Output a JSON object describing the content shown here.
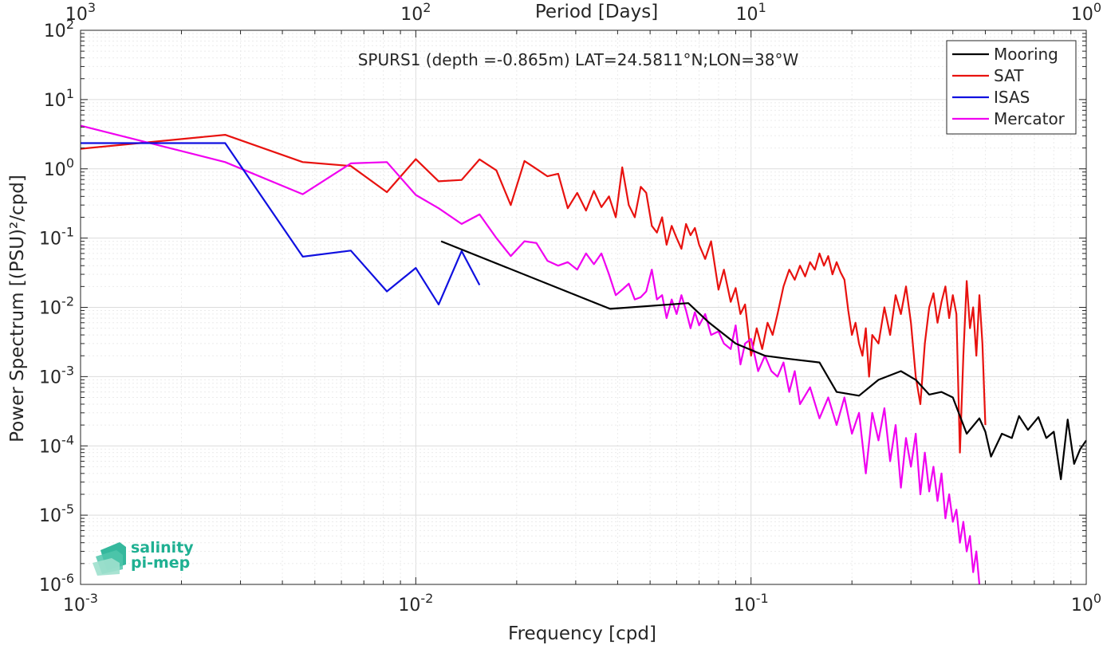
{
  "chart_data": {
    "type": "line",
    "title": "SPURS1 (depth =-0.865m) LAT=24.5811°N;LON=38°W",
    "xlabel": "Frequency [cpd]",
    "ylabel": "Power Spectrum [(PSU)²/cpd]",
    "x2label": "Period [Days]",
    "x_scale": "log",
    "y_scale": "log",
    "xlim": [
      0.001,
      1
    ],
    "ylim": [
      1e-06,
      100
    ],
    "grid": true,
    "legend_position": "top-right",
    "x_ticks": [
      {
        "value": 0.001,
        "base": "10",
        "exp": "-3"
      },
      {
        "value": 0.01,
        "base": "10",
        "exp": "-2"
      },
      {
        "value": 0.1,
        "base": "10",
        "exp": "-1"
      },
      {
        "value": 1,
        "base": "10",
        "exp": "0"
      }
    ],
    "x2_ticks": [
      {
        "value": 1000,
        "base": "10",
        "exp": "3"
      },
      {
        "value": 100,
        "base": "10",
        "exp": "2"
      },
      {
        "value": 10,
        "base": "10",
        "exp": "1"
      },
      {
        "value": 1,
        "base": "10",
        "exp": "0"
      }
    ],
    "y_ticks": [
      {
        "value": 1e-06,
        "base": "10",
        "exp": "-6"
      },
      {
        "value": 1e-05,
        "base": "10",
        "exp": "-5"
      },
      {
        "value": 0.0001,
        "base": "10",
        "exp": "-4"
      },
      {
        "value": 0.001,
        "base": "10",
        "exp": "-3"
      },
      {
        "value": 0.01,
        "base": "10",
        "exp": "-2"
      },
      {
        "value": 0.1,
        "base": "10",
        "exp": "-1"
      },
      {
        "value": 1,
        "base": "10",
        "exp": "0"
      },
      {
        "value": 10,
        "base": "10",
        "exp": "1"
      },
      {
        "value": 100,
        "base": "10",
        "exp": "2"
      }
    ],
    "series": [
      {
        "name": "Mooring",
        "color": "#000000",
        "x": [
          0.0119,
          0.038,
          0.065,
          0.075,
          0.09,
          0.11,
          0.13,
          0.16,
          0.18,
          0.21,
          0.24,
          0.28,
          0.31,
          0.34,
          0.37,
          0.4,
          0.44,
          0.48,
          0.5,
          0.52,
          0.56,
          0.6,
          0.63,
          0.67,
          0.72,
          0.76,
          0.8,
          0.84,
          0.88,
          0.92,
          0.96,
          1.0
        ],
        "y": [
          0.09,
          0.0095,
          0.0115,
          0.006,
          0.003,
          0.002,
          0.0018,
          0.0016,
          0.0006,
          0.00053,
          0.0009,
          0.0012,
          0.0009,
          0.00055,
          0.0006,
          0.0005,
          0.00015,
          0.00025,
          0.00016,
          7e-05,
          0.00015,
          0.00013,
          0.00027,
          0.00017,
          0.00026,
          0.00013,
          0.00016,
          3.3e-05,
          0.00024,
          5.5e-05,
          9e-05,
          0.00012
        ]
      },
      {
        "name": "SAT",
        "color": "#e8120f",
        "x": [
          0.001,
          0.0027,
          0.0046,
          0.0064,
          0.0082,
          0.01,
          0.0117,
          0.0137,
          0.0155,
          0.0174,
          0.0192,
          0.0211,
          0.0229,
          0.0247,
          0.0266,
          0.0284,
          0.0303,
          0.0322,
          0.034,
          0.0358,
          0.0377,
          0.0395,
          0.0413,
          0.0432,
          0.045,
          0.0469,
          0.0487,
          0.0506,
          0.0524,
          0.0543,
          0.056,
          0.058,
          0.06,
          0.062,
          0.064,
          0.066,
          0.068,
          0.07,
          0.073,
          0.076,
          0.08,
          0.083,
          0.087,
          0.09,
          0.093,
          0.096,
          0.1,
          0.104,
          0.108,
          0.112,
          0.116,
          0.12,
          0.125,
          0.13,
          0.135,
          0.14,
          0.145,
          0.15,
          0.155,
          0.16,
          0.165,
          0.17,
          0.175,
          0.18,
          0.185,
          0.19,
          0.195,
          0.2,
          0.205,
          0.21,
          0.215,
          0.22,
          0.225,
          0.23,
          0.24,
          0.25,
          0.26,
          0.27,
          0.28,
          0.29,
          0.3,
          0.31,
          0.32,
          0.33,
          0.34,
          0.35,
          0.36,
          0.37,
          0.38,
          0.39,
          0.4,
          0.41,
          0.42,
          0.43,
          0.44,
          0.45,
          0.46,
          0.47,
          0.48,
          0.49,
          0.5
        ],
        "y": [
          1.95,
          3.1,
          1.25,
          1.1,
          0.46,
          1.38,
          0.66,
          0.69,
          1.37,
          0.95,
          0.3,
          1.3,
          1.0,
          0.78,
          0.85,
          0.27,
          0.45,
          0.25,
          0.48,
          0.28,
          0.4,
          0.2,
          1.05,
          0.3,
          0.2,
          0.55,
          0.45,
          0.15,
          0.12,
          0.2,
          0.08,
          0.15,
          0.1,
          0.07,
          0.16,
          0.11,
          0.14,
          0.08,
          0.05,
          0.09,
          0.018,
          0.035,
          0.012,
          0.019,
          0.008,
          0.011,
          0.002,
          0.005,
          0.0025,
          0.006,
          0.004,
          0.008,
          0.02,
          0.035,
          0.025,
          0.04,
          0.028,
          0.045,
          0.035,
          0.06,
          0.04,
          0.055,
          0.03,
          0.045,
          0.032,
          0.025,
          0.009,
          0.004,
          0.006,
          0.003,
          0.002,
          0.005,
          0.001,
          0.004,
          0.003,
          0.01,
          0.004,
          0.015,
          0.008,
          0.02,
          0.006,
          0.001,
          0.0004,
          0.003,
          0.01,
          0.016,
          0.006,
          0.012,
          0.02,
          0.007,
          0.015,
          0.008,
          8e-05,
          0.002,
          0.024,
          0.005,
          0.01,
          0.002,
          0.015,
          0.003,
          0.0002
        ]
      },
      {
        "name": "ISAS",
        "color": "#1010e0",
        "x": [
          0.001,
          0.0027,
          0.0046,
          0.0064,
          0.0082,
          0.01,
          0.0117,
          0.0137,
          0.0155
        ],
        "y": [
          2.35,
          2.35,
          0.054,
          0.066,
          0.017,
          0.037,
          0.011,
          0.065,
          0.021
        ]
      },
      {
        "name": "Mercator",
        "color": "#f000f0",
        "x": [
          0.001,
          0.0027,
          0.0046,
          0.0064,
          0.0082,
          0.01,
          0.0117,
          0.0137,
          0.0155,
          0.0174,
          0.0192,
          0.0211,
          0.0229,
          0.0247,
          0.0266,
          0.0284,
          0.0303,
          0.0322,
          0.034,
          0.0358,
          0.0377,
          0.0395,
          0.0413,
          0.0432,
          0.045,
          0.0469,
          0.0487,
          0.0506,
          0.0524,
          0.0543,
          0.056,
          0.058,
          0.06,
          0.062,
          0.064,
          0.066,
          0.068,
          0.07,
          0.073,
          0.076,
          0.08,
          0.083,
          0.087,
          0.09,
          0.093,
          0.096,
          0.1,
          0.105,
          0.11,
          0.115,
          0.12,
          0.125,
          0.13,
          0.135,
          0.14,
          0.15,
          0.16,
          0.17,
          0.18,
          0.19,
          0.2,
          0.21,
          0.22,
          0.23,
          0.24,
          0.25,
          0.26,
          0.27,
          0.28,
          0.29,
          0.3,
          0.31,
          0.32,
          0.33,
          0.34,
          0.35,
          0.36,
          0.37,
          0.38,
          0.39,
          0.4,
          0.41,
          0.42,
          0.43,
          0.44,
          0.45,
          0.46,
          0.47,
          0.48
        ],
        "y": [
          4.2,
          1.25,
          0.43,
          1.2,
          1.25,
          0.42,
          0.27,
          0.16,
          0.22,
          0.1,
          0.055,
          0.09,
          0.085,
          0.047,
          0.04,
          0.045,
          0.035,
          0.06,
          0.042,
          0.06,
          0.03,
          0.015,
          0.018,
          0.022,
          0.013,
          0.014,
          0.017,
          0.035,
          0.013,
          0.015,
          0.007,
          0.013,
          0.008,
          0.015,
          0.009,
          0.005,
          0.0085,
          0.0055,
          0.008,
          0.004,
          0.0045,
          0.003,
          0.0025,
          0.0055,
          0.0015,
          0.003,
          0.0035,
          0.0012,
          0.002,
          0.0012,
          0.001,
          0.0016,
          0.0006,
          0.0012,
          0.0004,
          0.0007,
          0.00025,
          0.0005,
          0.0002,
          0.0005,
          0.00015,
          0.0003,
          4e-05,
          0.0003,
          0.00012,
          0.00035,
          6e-05,
          0.0002,
          2.5e-05,
          0.00013,
          5e-05,
          0.00015,
          2e-05,
          8e-05,
          2.2e-05,
          5e-05,
          1.6e-05,
          4e-05,
          9e-06,
          2e-05,
          8e-06,
          1.2e-05,
          4e-06,
          8e-06,
          3e-06,
          5e-06,
          1.5e-06,
          3e-06,
          1e-06
        ]
      }
    ]
  },
  "logo": {
    "line1": "salinity",
    "line2": "pi-mep",
    "color": "#1fb092"
  }
}
